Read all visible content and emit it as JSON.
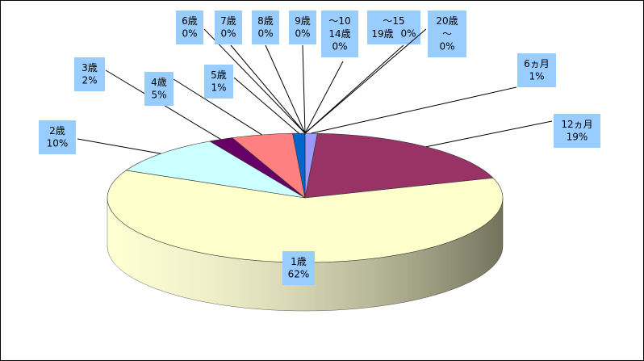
{
  "chart_data": {
    "type": "pie",
    "categories": [
      "6ヵ月",
      "12ヵ月",
      "1歳",
      "2歳",
      "3歳",
      "4歳",
      "5歳",
      "6歳",
      "7歳",
      "8歳",
      "9歳",
      "～10\n14歳",
      "～15\n19歳",
      "20歳\n～"
    ],
    "values": [
      1,
      19,
      62,
      10,
      2,
      5,
      1,
      0,
      0,
      0,
      0,
      0,
      0,
      0
    ],
    "value_labels": [
      "1%",
      "19%",
      "62%",
      "10%",
      "2%",
      "5%",
      "1%",
      "0%",
      "0%",
      "0%",
      "0%",
      "0%",
      "0%",
      "0%"
    ],
    "colors": [
      "#9999ff",
      "#993366",
      "#ffffcc",
      "#ccffff",
      "#660066",
      "#ff8080",
      "#0066cc",
      "#ccccff",
      "#000080",
      "#ff00ff",
      "#ffff00",
      "#00ffff",
      "#800080",
      "#800000"
    ]
  }
}
